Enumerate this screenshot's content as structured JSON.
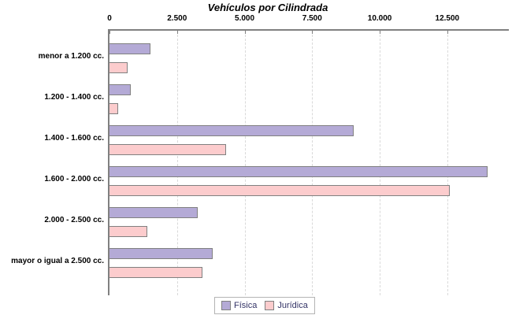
{
  "chart_data": {
    "type": "bar",
    "orientation": "horizontal",
    "title": "Vehículos por Cilindrada",
    "categories": [
      "menor a 1.200 cc.",
      "1.200 - 1.400 cc.",
      "1.400 - 1.600 cc.",
      "1.600 - 2.000 cc.",
      "2.000 - 2.500 cc.",
      "mayor o igual a 2.500 cc."
    ],
    "series": [
      {
        "name": "Física",
        "color": "#b4aad6",
        "border_color": "#808080",
        "values": [
          1500,
          770,
          9000,
          13950,
          3230,
          3780
        ]
      },
      {
        "name": "Jurídica",
        "color": "#fccccd",
        "border_color": "#808080",
        "values": [
          650,
          300,
          4280,
          12550,
          1370,
          3410
        ]
      }
    ],
    "x_ticks": [
      {
        "value": 0,
        "label": "0"
      },
      {
        "value": 2500,
        "label": "2.500"
      },
      {
        "value": 5000,
        "label": "5.000"
      },
      {
        "value": 7500,
        "label": "7.500"
      },
      {
        "value": 10000,
        "label": "10.000"
      },
      {
        "value": 12500,
        "label": "12.500"
      }
    ],
    "xlim": [
      0,
      14720
    ],
    "xlabel": "",
    "ylabel": "",
    "grid": "vertical-dashed",
    "legend_position": "bottom-center"
  },
  "legend": {
    "items": [
      {
        "label": "Física",
        "color": "#b4aad6"
      },
      {
        "label": "Jurídica",
        "color": "#fccccd"
      }
    ]
  },
  "colors": {
    "axis": "#808080",
    "gridline": "#d9d9d9",
    "bar_border": "#808080",
    "legend_text": "#333366",
    "legend_border": "#b4b4b4",
    "title_text": "#000000",
    "background": "#ffffff"
  }
}
